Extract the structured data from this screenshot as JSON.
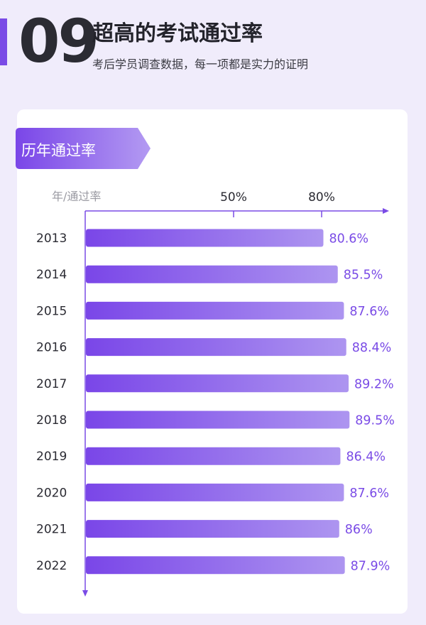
{
  "header": {
    "number": "09",
    "title": "超高的考试通过率",
    "subtitle": "考后学员调查数据，每一项都是实力的证明"
  },
  "colors": {
    "accent": "#7a4be6",
    "bar_start": "#7a46e8",
    "bar_end": "#ad95f0",
    "value_label": "#7a4be6",
    "background": "#f0ecfb",
    "card": "#ffffff"
  },
  "chart_data": {
    "type": "bar",
    "orientation": "horizontal",
    "title": "历年通过率",
    "axis_caption": "年/通过率",
    "x_ticks": [
      {
        "value": 50,
        "label": "50%"
      },
      {
        "value": 80,
        "label": "80%"
      }
    ],
    "categories": [
      "2013",
      "2014",
      "2015",
      "2016",
      "2017",
      "2018",
      "2019",
      "2020",
      "2021",
      "2022"
    ],
    "values": [
      80.6,
      85.5,
      87.6,
      88.4,
      89.2,
      89.5,
      86.4,
      87.6,
      86,
      87.9
    ],
    "value_labels": [
      "80.6%",
      "85.5%",
      "87.6%",
      "88.4%",
      "89.2%",
      "89.5%",
      "86.4%",
      "87.6%",
      "86%",
      "87.9%"
    ],
    "unit": "%",
    "grid": false
  }
}
